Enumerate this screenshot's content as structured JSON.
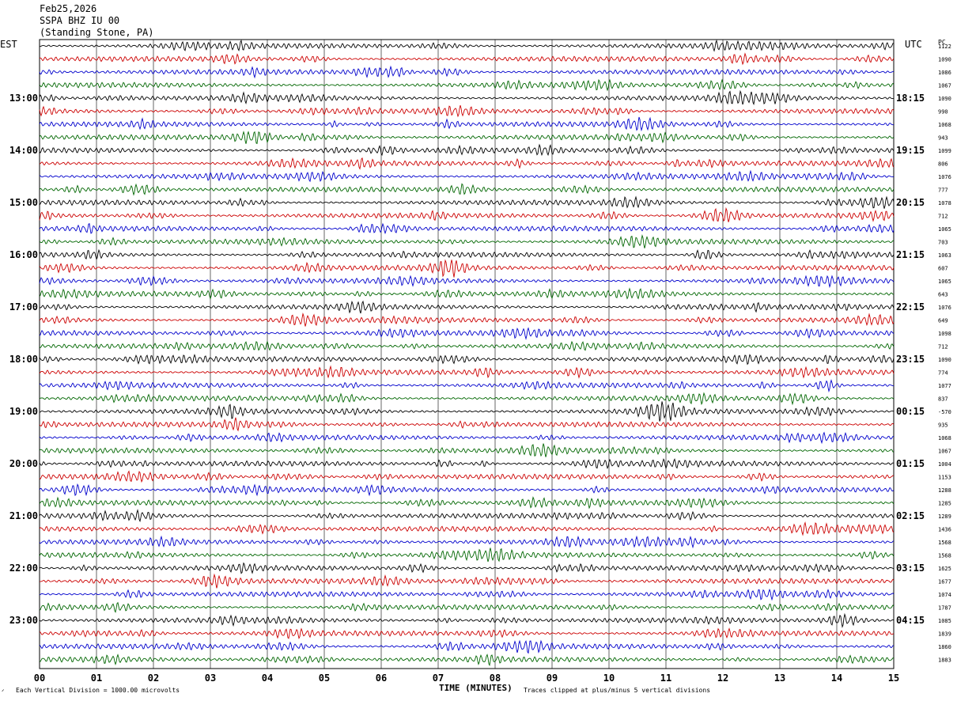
{
  "header": {
    "date": "Feb25,2026",
    "station": "SSPA BHZ IU 00",
    "location": "(Standing Stone, PA)"
  },
  "axes": {
    "left_unit": "EST",
    "right_unit": "UTC",
    "corner_label": "PC",
    "x_title": "TIME (MINUTES)"
  },
  "footer": {
    "scale_note": "Each Vertical Division = 1000.00 microvolts",
    "clip_note": "Traces clipped at plus/minus 5 vertical divisions",
    "corner_mark": "ᐟ"
  },
  "colors": {
    "trace_cycle": [
      "#000000",
      "#cc0000",
      "#0000cc",
      "#006600"
    ],
    "grid": "#000000",
    "background": "#ffffff"
  },
  "chart_data": {
    "type": "line",
    "subtype": "helicorder",
    "title": "",
    "xlabel": "TIME (MINUTES)",
    "ylabel": "",
    "xlim": [
      0,
      15
    ],
    "x_ticks": [
      "00",
      "01",
      "02",
      "03",
      "04",
      "05",
      "06",
      "07",
      "08",
      "09",
      "10",
      "11",
      "12",
      "13",
      "14",
      "15"
    ],
    "traces_per_hour": 4,
    "trace_count": 48,
    "left_hour_labels": [
      "13:00",
      "14:00",
      "15:00",
      "16:00",
      "17:00",
      "18:00",
      "19:00",
      "20:00",
      "21:00",
      "22:00",
      "23:00"
    ],
    "right_hour_labels": [
      "18:15",
      "19:15",
      "20:15",
      "21:15",
      "22:15",
      "23:15",
      "00:15",
      "01:15",
      "02:15",
      "03:15",
      "04:15"
    ],
    "trace_offsets": [
      "1122",
      "1090",
      "1086",
      "1067",
      "1090",
      "990",
      "1068",
      "943",
      "1099",
      "806",
      "1076",
      "777",
      "1078",
      "712",
      "1065",
      "703",
      "1063",
      "607",
      "1065",
      "643",
      "1076",
      "649",
      "1098",
      "712",
      "1090",
      "774",
      "1077",
      "837",
      "-570",
      "935",
      "1068",
      "1067",
      "1004",
      "1153",
      "1288",
      "1285",
      "1289",
      "1436",
      "1568",
      "1568",
      "1625",
      "1677",
      "1074",
      "1787",
      "1085",
      "1839",
      "1860",
      "1883"
    ],
    "grid": true,
    "series": []
  }
}
